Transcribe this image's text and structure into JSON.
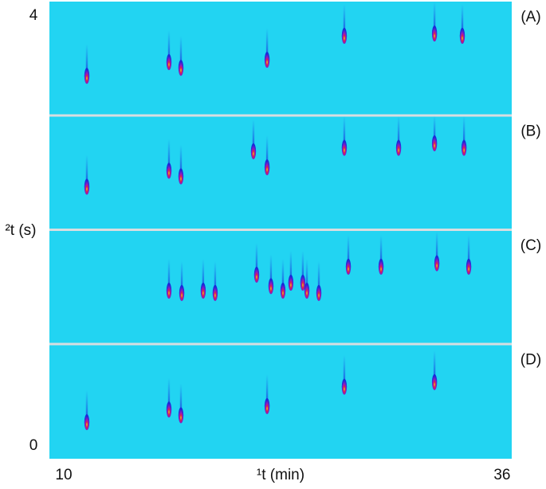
{
  "chart_data": {
    "type": "gc-image",
    "x_label": "¹t (min)",
    "y_label": "²t (s)",
    "xlim": [
      9.15,
      36.57
    ],
    "xticks": [
      10,
      36
    ],
    "ylim": [
      0,
      4
    ],
    "yticks": [
      0,
      4
    ],
    "background": "#22d4f2",
    "series": [
      {
        "name": "(A)",
        "x": [
          11.37,
          16.24,
          16.95,
          22.06,
          26.64,
          31.99,
          33.64
        ],
        "values": [
          3.35,
          3.47,
          3.42,
          3.49,
          3.7,
          3.72,
          3.7
        ]
      },
      {
        "name": "(B)",
        "x": [
          11.37,
          16.24,
          16.95,
          21.25,
          22.06,
          26.64,
          29.86,
          31.99,
          33.74
        ],
        "values": [
          2.38,
          2.52,
          2.47,
          2.69,
          2.55,
          2.72,
          2.72,
          2.76,
          2.72
        ]
      },
      {
        "name": "(C)",
        "x": [
          16.24,
          17.0,
          18.27,
          18.98,
          21.44,
          22.29,
          23.0,
          23.47,
          24.18,
          24.42,
          25.13,
          26.88,
          28.82,
          32.13,
          34.02
        ],
        "values": [
          1.47,
          1.45,
          1.47,
          1.45,
          1.61,
          1.51,
          1.47,
          1.54,
          1.54,
          1.47,
          1.45,
          1.68,
          1.68,
          1.71,
          1.68
        ]
      },
      {
        "name": "(D)",
        "x": [
          11.37,
          16.24,
          16.95,
          22.06,
          26.64,
          31.99
        ],
        "values": [
          0.32,
          0.43,
          0.38,
          0.46,
          0.63,
          0.67
        ]
      }
    ]
  }
}
